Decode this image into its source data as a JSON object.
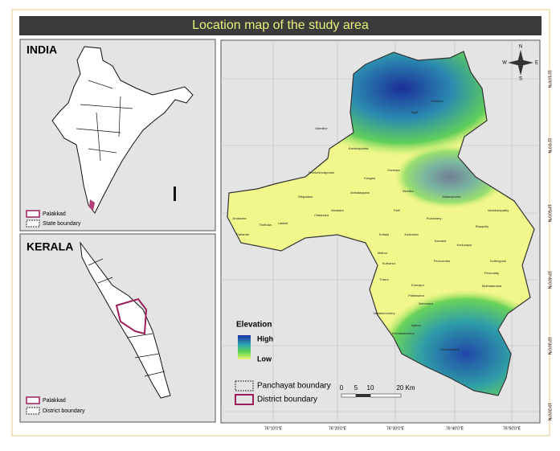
{
  "title": "Location map of the study area",
  "india": {
    "label": "INDIA",
    "legend": [
      "Palakkad",
      "State boundary"
    ]
  },
  "kerala": {
    "label": "KERALA",
    "legend": [
      "Palakkad",
      "District boundary"
    ]
  },
  "north_arrow": {
    "n": "N",
    "s": "S",
    "e": "E",
    "w": "W"
  },
  "panchayats": [
    "Agali",
    "Sholayur",
    "Alanallur",
    "Karimba",
    "Kanhirapuzha",
    "Malampuzha",
    "Kongad",
    "Mundur",
    "Parli",
    "Kottayi",
    "Pudussery",
    "Elappully",
    "Vadakarapathy",
    "Kollengode",
    "Muthalamada",
    "Nelliampathy",
    "Nemmara",
    "Ayiloor",
    "Kizhakkanchery",
    "Pallassana",
    "Tharur",
    "Kannadi",
    "Mathur",
    "Anakkara",
    "Pattambi",
    "Thrithala",
    "Ottapalam",
    "Lakkidi",
    "Mankara",
    "Ambalappara",
    "Chalavara",
    "Sreekrishnapuram",
    "Kuthanur",
    "Kodumba",
    "Peruvemba",
    "Erimayur",
    "Vadakkenchery",
    "Koduvayur",
    "Perumatty"
  ],
  "elevation_legend": {
    "title": "Elevation",
    "high": "High",
    "low": "Low"
  },
  "boundary_legend": [
    "Panchayat boundary",
    "District boundary"
  ],
  "scale_bar": {
    "labels": [
      "0",
      "5",
      "10",
      "20 Km"
    ]
  },
  "longitude_labels": [
    "76°10'0\"E",
    "76°20'0\"E",
    "76°30'0\"E",
    "76°40'0\"E",
    "76°50'0\"E"
  ],
  "latitude_labels": [
    "11°10'0\"N",
    "11°0'0\"N",
    "10°50'0\"N",
    "10°40'0\"N",
    "10°30'0\"N",
    "10°20'0\"N"
  ]
}
